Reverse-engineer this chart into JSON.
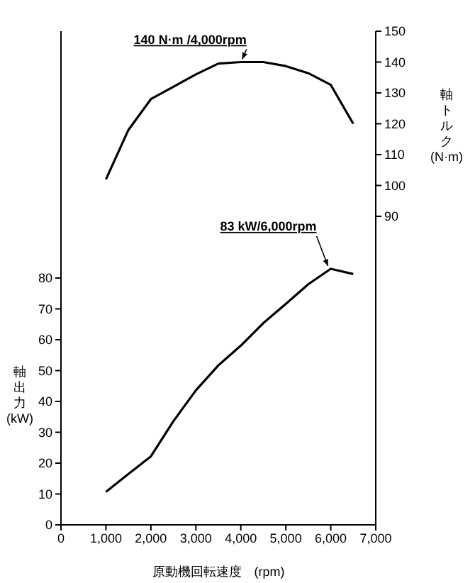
{
  "chart_data": {
    "type": "line",
    "xlabel": "原動機回転速度　(rpm)",
    "ylabel": "軸出力(kW)",
    "y2label": "軸トルク(N·m)",
    "x": [
      1000,
      1500,
      2000,
      2500,
      3000,
      3500,
      4000,
      4500,
      5000,
      5500,
      6000,
      6500
    ],
    "series": [
      {
        "color": "#000000",
        "axis": "y2",
        "values": [
          102,
          118,
          128,
          132,
          136,
          139.5,
          140,
          140,
          138.7,
          136.4,
          132.6,
          120
        ]
      },
      {
        "color": "#000000",
        "values": [
          10.7,
          16.5,
          22.2,
          33.6,
          43.6,
          51.7,
          58.1,
          65.4,
          71.6,
          78,
          83,
          81.3
        ]
      }
    ],
    "xlim": [
      0,
      7000
    ],
    "xticks": [
      {
        "value": 0,
        "label": "0"
      },
      {
        "value": 1000,
        "label": "1,000"
      },
      {
        "value": 2000,
        "label": "2,000"
      },
      {
        "value": 3000,
        "label": "3,000"
      },
      {
        "value": 4000,
        "label": "4,000"
      },
      {
        "value": 5000,
        "label": "5,000"
      },
      {
        "value": 6000,
        "label": "6,000"
      },
      {
        "value": 7000,
        "label": "7,000"
      }
    ],
    "ylim": [
      0,
      160
    ],
    "yticks": [
      0,
      10,
      20,
      30,
      40,
      50,
      60,
      70,
      80
    ],
    "y2lim": [
      -10,
      150
    ],
    "y2ticks": [
      90,
      100,
      110,
      120,
      130,
      140,
      150
    ],
    "annotations": [
      "140 N·m /4,000rpm",
      {
        "text": "83 kW/6,000rpm",
        "x": 6000,
        "y": 83
      }
    ],
    "marker": "none",
    "line_style": "solid"
  }
}
